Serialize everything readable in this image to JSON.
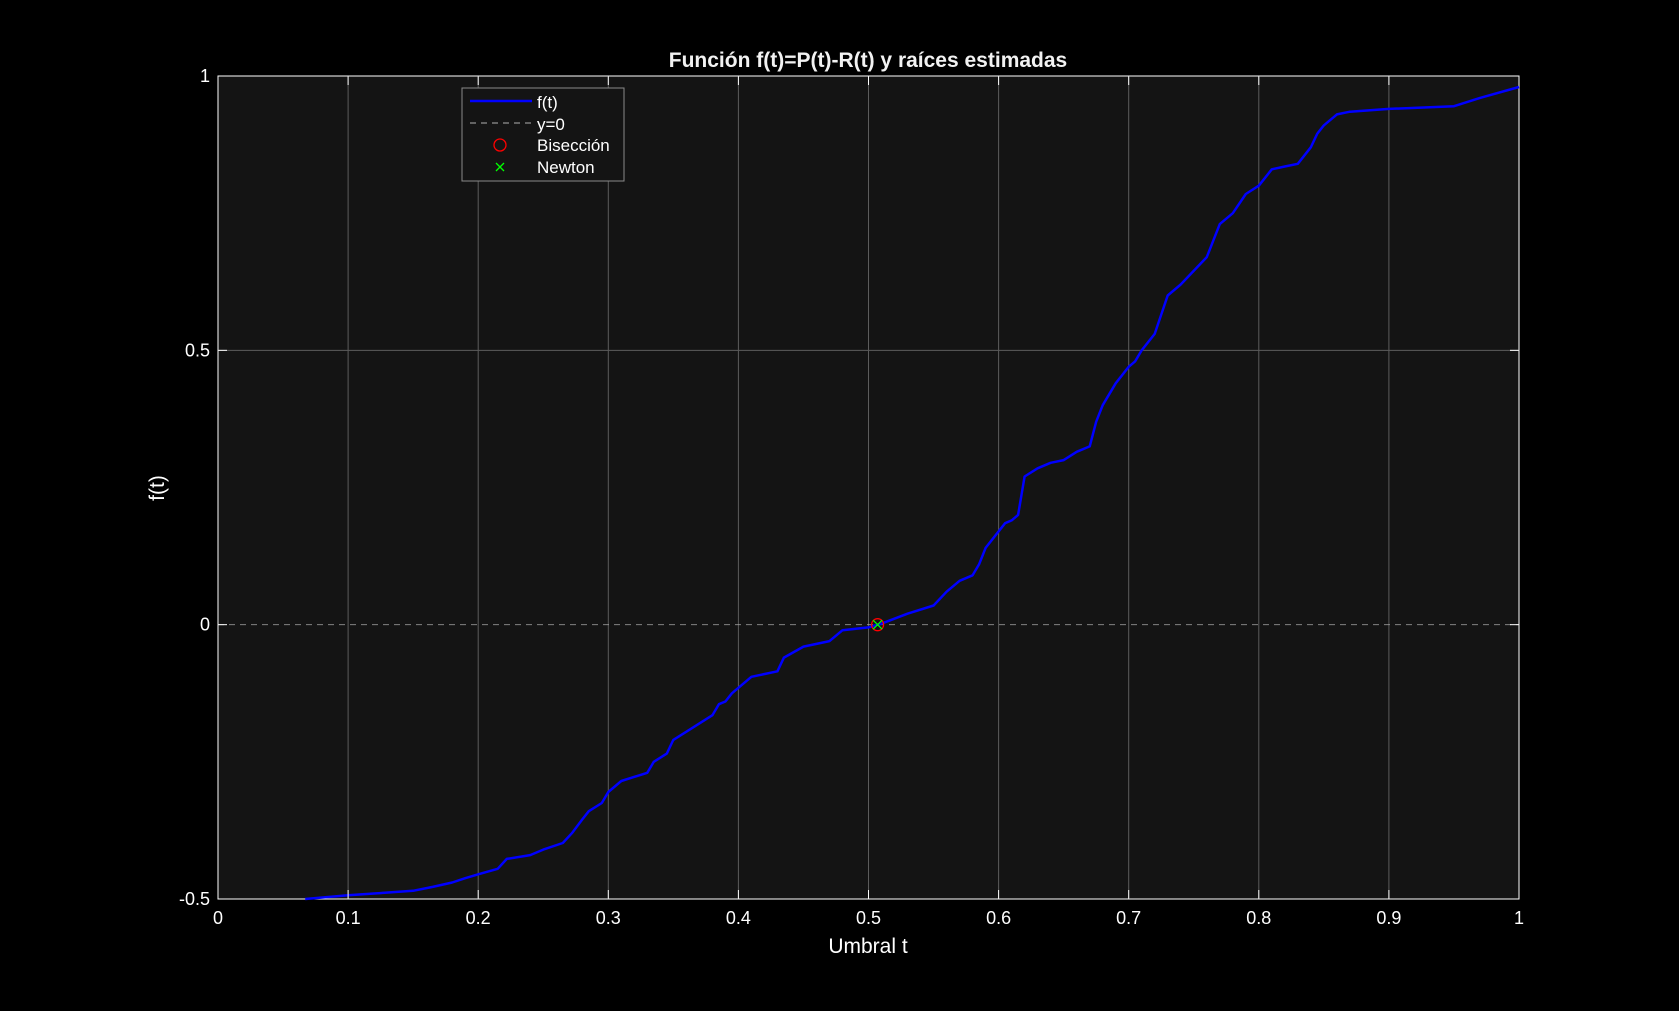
{
  "chart_data": {
    "type": "line",
    "title": "Función f(t)=P(t)-R(t) y raíces estimadas",
    "xlabel": "Umbral t",
    "ylabel": "f(t)",
    "xlim": [
      0,
      1
    ],
    "ylim": [
      -0.5,
      1
    ],
    "xticks": [
      "0",
      "0.1",
      "0.2",
      "0.3",
      "0.4",
      "0.5",
      "0.6",
      "0.7",
      "0.8",
      "0.9",
      "1"
    ],
    "xtick_values": [
      0,
      0.1,
      0.2,
      0.3,
      0.4,
      0.5,
      0.6,
      0.7,
      0.8,
      0.9,
      1
    ],
    "yticks": [
      "-0.5",
      "0",
      "0.5",
      "1"
    ],
    "ytick_values": [
      -0.5,
      0,
      0.5,
      1
    ],
    "grid": true,
    "legend_position": "top-left",
    "colors": {
      "figure_background": "#000000",
      "axes_background": "#141414",
      "text": "#ffffff",
      "grid": "#5c5c5c",
      "curve": "#0000ff",
      "zero_line": "#b0b0b0",
      "bisection_marker": "#ff0000",
      "newton_marker": "#00ff00"
    },
    "series": [
      {
        "name": "f(t)",
        "style": "solid",
        "x": [
          0.067,
          0.1,
          0.12,
          0.15,
          0.165,
          0.18,
          0.19,
          0.2,
          0.215,
          0.222,
          0.24,
          0.25,
          0.265,
          0.272,
          0.28,
          0.285,
          0.295,
          0.3,
          0.31,
          0.33,
          0.335,
          0.345,
          0.35,
          0.36,
          0.37,
          0.38,
          0.385,
          0.39,
          0.395,
          0.405,
          0.41,
          0.43,
          0.435,
          0.45,
          0.47,
          0.48,
          0.5,
          0.507,
          0.51,
          0.53,
          0.55,
          0.56,
          0.57,
          0.58,
          0.585,
          0.59,
          0.605,
          0.61,
          0.615,
          0.62,
          0.63,
          0.64,
          0.65,
          0.66,
          0.67,
          0.675,
          0.68,
          0.69,
          0.7,
          0.705,
          0.71,
          0.72,
          0.73,
          0.74,
          0.75,
          0.76,
          0.765,
          0.77,
          0.78,
          0.79,
          0.8,
          0.81,
          0.82,
          0.83,
          0.84,
          0.845,
          0.85,
          0.86,
          0.87,
          0.9,
          0.95,
          0.97,
          1.0
        ],
        "values": [
          -0.5,
          -0.493,
          -0.49,
          -0.485,
          -0.478,
          -0.47,
          -0.462,
          -0.455,
          -0.445,
          -0.427,
          -0.42,
          -0.41,
          -0.398,
          -0.38,
          -0.355,
          -0.34,
          -0.325,
          -0.305,
          -0.285,
          -0.27,
          -0.25,
          -0.235,
          -0.21,
          -0.195,
          -0.18,
          -0.165,
          -0.145,
          -0.14,
          -0.125,
          -0.105,
          -0.095,
          -0.085,
          -0.06,
          -0.04,
          -0.03,
          -0.01,
          -0.005,
          0.0,
          0.002,
          0.02,
          0.035,
          0.06,
          0.08,
          0.09,
          0.11,
          0.14,
          0.185,
          0.19,
          0.2,
          0.27,
          0.285,
          0.295,
          0.3,
          0.315,
          0.325,
          0.37,
          0.4,
          0.44,
          0.47,
          0.48,
          0.5,
          0.53,
          0.6,
          0.62,
          0.645,
          0.67,
          0.7,
          0.73,
          0.75,
          0.785,
          0.8,
          0.83,
          0.835,
          0.84,
          0.87,
          0.895,
          0.91,
          0.93,
          0.935,
          0.94,
          0.945,
          0.96,
          0.98
        ]
      },
      {
        "name": "y=0",
        "style": "dashed",
        "x": [
          0,
          1
        ],
        "values": [
          0,
          0
        ]
      }
    ],
    "markers": [
      {
        "name": "Bisección",
        "shape": "circle",
        "x": 0.507,
        "y": 0
      },
      {
        "name": "Newton",
        "shape": "x",
        "x": 0.507,
        "y": 0
      }
    ]
  }
}
